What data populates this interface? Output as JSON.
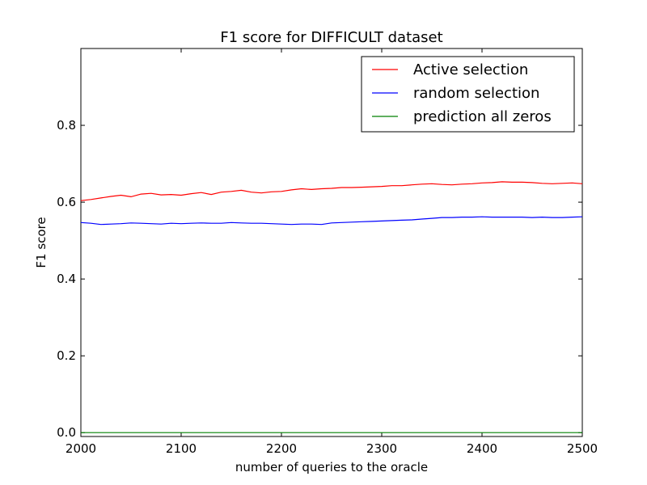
{
  "chart_data": {
    "type": "line",
    "title": "F1 score for DIFFICULT dataset",
    "xlabel": "number of queries to the oracle",
    "ylabel": "F1 score",
    "xlim": [
      2000,
      2500
    ],
    "ylim": [
      -0.01,
      1.0
    ],
    "xticks": [
      "2000",
      "2100",
      "2200",
      "2300",
      "2400",
      "2500"
    ],
    "yticks": [
      "0.0",
      "0.2",
      "0.4",
      "0.6",
      "0.8"
    ],
    "grid": false,
    "legend_position": "top-right",
    "x": [
      2000,
      2010,
      2020,
      2030,
      2040,
      2050,
      2060,
      2070,
      2080,
      2090,
      2100,
      2110,
      2120,
      2130,
      2140,
      2150,
      2160,
      2170,
      2180,
      2190,
      2200,
      2210,
      2220,
      2230,
      2240,
      2250,
      2260,
      2270,
      2280,
      2290,
      2300,
      2310,
      2320,
      2330,
      2340,
      2350,
      2360,
      2370,
      2380,
      2390,
      2400,
      2410,
      2420,
      2430,
      2440,
      2450,
      2460,
      2470,
      2480,
      2490,
      2500
    ],
    "series": [
      {
        "name": "Active selection",
        "color": "#ff0000",
        "values": [
          0.604,
          0.607,
          0.611,
          0.615,
          0.618,
          0.614,
          0.621,
          0.623,
          0.619,
          0.62,
          0.618,
          0.622,
          0.625,
          0.62,
          0.626,
          0.628,
          0.631,
          0.626,
          0.624,
          0.627,
          0.628,
          0.632,
          0.635,
          0.633,
          0.635,
          0.636,
          0.638,
          0.638,
          0.639,
          0.64,
          0.641,
          0.643,
          0.643,
          0.645,
          0.647,
          0.648,
          0.646,
          0.645,
          0.647,
          0.648,
          0.65,
          0.651,
          0.653,
          0.652,
          0.652,
          0.651,
          0.649,
          0.648,
          0.649,
          0.65,
          0.648
        ]
      },
      {
        "name": "random selection",
        "color": "#0000ff",
        "values": [
          0.547,
          0.545,
          0.542,
          0.543,
          0.544,
          0.546,
          0.545,
          0.544,
          0.543,
          0.545,
          0.544,
          0.545,
          0.546,
          0.545,
          0.545,
          0.547,
          0.546,
          0.545,
          0.545,
          0.544,
          0.543,
          0.542,
          0.543,
          0.543,
          0.542,
          0.546,
          0.547,
          0.548,
          0.549,
          0.55,
          0.551,
          0.552,
          0.553,
          0.554,
          0.556,
          0.558,
          0.56,
          0.56,
          0.561,
          0.561,
          0.562,
          0.561,
          0.561,
          0.561,
          0.561,
          0.56,
          0.561,
          0.56,
          0.56,
          0.561,
          0.562
        ]
      },
      {
        "name": "prediction all zeros",
        "color": "#008000",
        "values": [
          0.0,
          0.0,
          0.0,
          0.0,
          0.0,
          0.0,
          0.0,
          0.0,
          0.0,
          0.0,
          0.0,
          0.0,
          0.0,
          0.0,
          0.0,
          0.0,
          0.0,
          0.0,
          0.0,
          0.0,
          0.0,
          0.0,
          0.0,
          0.0,
          0.0,
          0.0,
          0.0,
          0.0,
          0.0,
          0.0,
          0.0,
          0.0,
          0.0,
          0.0,
          0.0,
          0.0,
          0.0,
          0.0,
          0.0,
          0.0,
          0.0,
          0.0,
          0.0,
          0.0,
          0.0,
          0.0,
          0.0,
          0.0,
          0.0,
          0.0,
          0.0
        ]
      }
    ]
  }
}
